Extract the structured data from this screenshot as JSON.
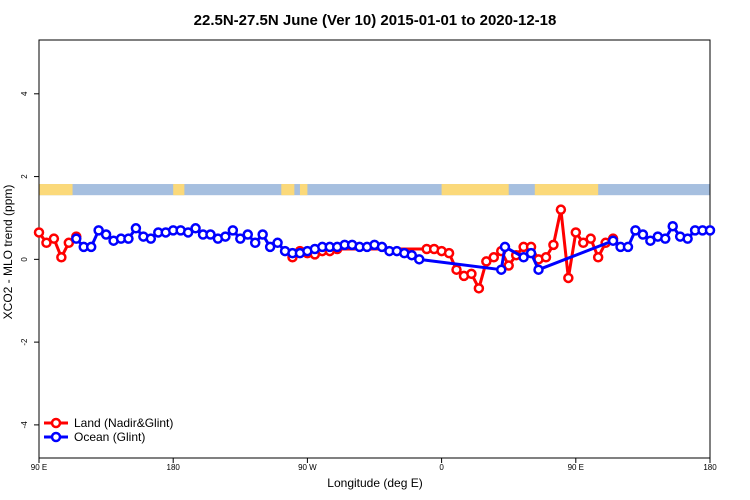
{
  "chart_data": {
    "type": "line",
    "title": "22.5N-27.5N June (Ver 10)   2015-01-01 to 2020-12-18",
    "xlabel": "Longitude (deg E)",
    "ylabel": "XCO2 - MLO trend (ppm)",
    "xlim": [
      -90,
      270
    ],
    "ylim": [
      -4.8,
      5.3
    ],
    "x_ticks": [
      {
        "value": -90,
        "label": "90 E"
      },
      {
        "value": -18,
        "label": "180"
      },
      {
        "value": 54,
        "label": "90 W"
      },
      {
        "value": 126,
        "label": "0"
      },
      {
        "value": 198,
        "label": "90 E"
      },
      {
        "value": 270,
        "label": "180"
      }
    ],
    "y_ticks": [
      {
        "value": -4,
        "label": "-4"
      },
      {
        "value": -2,
        "label": "-2"
      },
      {
        "value": 0,
        "label": "0"
      },
      {
        "value": 2,
        "label": "2"
      },
      {
        "value": 4,
        "label": "4"
      }
    ],
    "series": [
      {
        "name": "Land (Nadir&Glint)",
        "color": "#ff0000",
        "points": [
          [
            -90,
            0.65
          ],
          [
            -86,
            0.4
          ],
          [
            -82,
            0.5
          ],
          [
            -78,
            0.05
          ],
          [
            -74,
            0.4
          ],
          [
            -70,
            0.55
          ],
          [
            -66,
            null
          ],
          [
            -6,
            null
          ],
          [
            10,
            null
          ],
          [
            46,
            0.05
          ],
          [
            50,
            0.2
          ],
          [
            54,
            0.15
          ],
          [
            58,
            0.12
          ],
          [
            62,
            0.2
          ],
          [
            66,
            0.2
          ],
          [
            70,
            0.25
          ],
          [
            118,
            0.25
          ],
          [
            122,
            0.25
          ],
          [
            126,
            0.2
          ],
          [
            130,
            0.15
          ],
          [
            134,
            -0.25
          ],
          [
            138,
            -0.4
          ],
          [
            142,
            -0.35
          ],
          [
            146,
            -0.7
          ],
          [
            150,
            -0.05
          ],
          [
            154,
            0.05
          ],
          [
            158,
            0.2
          ],
          [
            162,
            -0.15
          ],
          [
            166,
            0.1
          ],
          [
            170,
            0.3
          ],
          [
            174,
            0.3
          ],
          [
            178,
            0.0
          ],
          [
            182,
            0.05
          ],
          [
            186,
            0.35
          ],
          [
            190,
            1.2
          ],
          [
            194,
            -0.45
          ],
          [
            198,
            0.65
          ],
          [
            202,
            0.4
          ],
          [
            206,
            0.5
          ],
          [
            210,
            0.05
          ],
          [
            214,
            0.4
          ],
          [
            218,
            0.5
          ]
        ]
      },
      {
        "name": "Ocean (Glint)",
        "color": "#0000ff",
        "points": [
          [
            -70,
            0.5
          ],
          [
            -66,
            0.3
          ],
          [
            -62,
            0.3
          ],
          [
            -58,
            0.7
          ],
          [
            -54,
            0.6
          ],
          [
            -50,
            0.45
          ],
          [
            -46,
            0.5
          ],
          [
            -42,
            0.5
          ],
          [
            -38,
            0.75
          ],
          [
            -34,
            0.55
          ],
          [
            -30,
            0.5
          ],
          [
            -26,
            0.65
          ],
          [
            -22,
            0.65
          ],
          [
            -18,
            0.7
          ],
          [
            -14,
            0.7
          ],
          [
            -10,
            0.65
          ],
          [
            -6,
            0.75
          ],
          [
            -2,
            0.6
          ],
          [
            2,
            0.6
          ],
          [
            6,
            0.5
          ],
          [
            10,
            0.55
          ],
          [
            14,
            0.7
          ],
          [
            18,
            0.5
          ],
          [
            22,
            0.6
          ],
          [
            26,
            0.4
          ],
          [
            30,
            0.6
          ],
          [
            34,
            0.3
          ],
          [
            38,
            0.4
          ],
          [
            42,
            0.2
          ],
          [
            46,
            0.15
          ],
          [
            50,
            0.15
          ],
          [
            54,
            0.2
          ],
          [
            58,
            0.25
          ],
          [
            62,
            0.3
          ],
          [
            66,
            0.3
          ],
          [
            70,
            0.3
          ],
          [
            74,
            0.35
          ],
          [
            78,
            0.35
          ],
          [
            82,
            0.3
          ],
          [
            86,
            0.3
          ],
          [
            90,
            0.35
          ],
          [
            94,
            0.3
          ],
          [
            98,
            0.2
          ],
          [
            102,
            0.2
          ],
          [
            106,
            0.15
          ],
          [
            110,
            0.1
          ],
          [
            114,
            0.0
          ],
          [
            158,
            -0.25
          ],
          [
            160,
            0.3
          ],
          [
            170,
            0.05
          ],
          [
            174,
            0.15
          ],
          [
            178,
            -0.25
          ],
          [
            218,
            0.45
          ],
          [
            222,
            0.3
          ],
          [
            226,
            0.3
          ],
          [
            230,
            0.7
          ],
          [
            234,
            0.6
          ],
          [
            238,
            0.45
          ],
          [
            242,
            0.55
          ],
          [
            246,
            0.5
          ],
          [
            250,
            0.8
          ],
          [
            254,
            0.55
          ],
          [
            258,
            0.5
          ],
          [
            262,
            0.7
          ],
          [
            266,
            0.7
          ],
          [
            270,
            0.7
          ]
        ]
      }
    ],
    "surface_band": {
      "ymin": 1.55,
      "ymax": 1.82,
      "ocean_color": "#a6bfdf",
      "land_color": "#fbd97a",
      "land_ranges": [
        [
          -90,
          -72
        ],
        [
          -18,
          -12
        ],
        [
          40,
          47
        ],
        [
          50,
          54
        ],
        [
          126,
          162
        ],
        [
          176,
          210
        ]
      ]
    },
    "legend": {
      "position": "bottom-left",
      "entries": [
        "Land (Nadir&Glint)",
        "Ocean (Glint)"
      ]
    }
  }
}
